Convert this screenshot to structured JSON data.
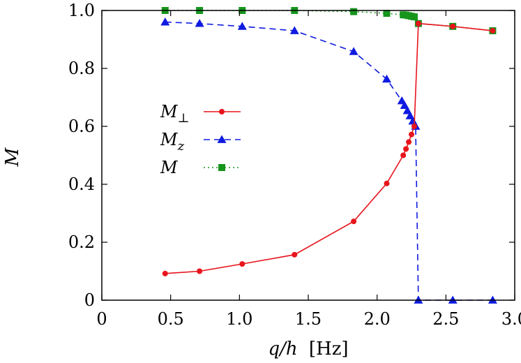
{
  "chart_data": {
    "type": "line",
    "title": "",
    "xlabel_parts": [
      "q/h",
      "[Hz]"
    ],
    "ylabel": "M",
    "xlim": [
      0,
      3.0
    ],
    "ylim": [
      0,
      1.0
    ],
    "x_ticks": [
      0,
      0.5,
      1.0,
      1.5,
      2.0,
      2.5,
      3.0
    ],
    "x_tick_labels": [
      "0",
      "0.5",
      "1.0",
      "1.5",
      "2.0",
      "2.5",
      "3.0"
    ],
    "y_ticks": [
      0,
      0.2,
      0.4,
      0.6,
      0.8,
      1.0
    ],
    "y_tick_labels": [
      "0",
      "0.2",
      "0.4",
      "0.6",
      "0.8",
      "1.0"
    ],
    "grid": false,
    "legend_position": "center-left",
    "series": [
      {
        "name": "M_perp",
        "label_base": "M",
        "label_sub": "⊥",
        "color": "#e8141c",
        "line_style": "solid",
        "marker": "circle",
        "x": [
          0.46,
          0.71,
          1.02,
          1.4,
          1.83,
          2.07,
          2.19,
          2.21,
          2.23,
          2.25,
          2.27,
          2.3,
          2.55,
          2.84
        ],
        "y": [
          0.092,
          0.1,
          0.125,
          0.157,
          0.272,
          0.403,
          0.5,
          0.522,
          0.546,
          0.572,
          0.6,
          0.955,
          0.945,
          0.93
        ]
      },
      {
        "name": "M_z",
        "label_base": "M",
        "label_sub": "z",
        "color": "#0f1be0",
        "line_style": "dashed",
        "marker": "triangle",
        "x": [
          0.46,
          0.71,
          1.02,
          1.4,
          1.83,
          2.07,
          2.18,
          2.2,
          2.22,
          2.24,
          2.26,
          2.28,
          2.3,
          2.55,
          2.84
        ],
        "y": [
          0.96,
          0.955,
          0.945,
          0.93,
          0.858,
          0.763,
          0.688,
          0.672,
          0.654,
          0.636,
          0.618,
          0.6,
          0.0,
          0.0,
          0.0
        ]
      },
      {
        "name": "M",
        "label_base": "M",
        "label_sub": "",
        "color": "#16951c",
        "line_style": "dotted",
        "marker": "square",
        "x": [
          0.46,
          0.71,
          1.02,
          1.4,
          1.83,
          2.07,
          2.19,
          2.21,
          2.23,
          2.25,
          2.27,
          2.3,
          2.55,
          2.84
        ],
        "y": [
          1.0,
          1.0,
          1.0,
          1.0,
          0.996,
          0.99,
          0.985,
          0.984,
          0.982,
          0.98,
          0.978,
          0.955,
          0.945,
          0.93
        ]
      }
    ]
  }
}
